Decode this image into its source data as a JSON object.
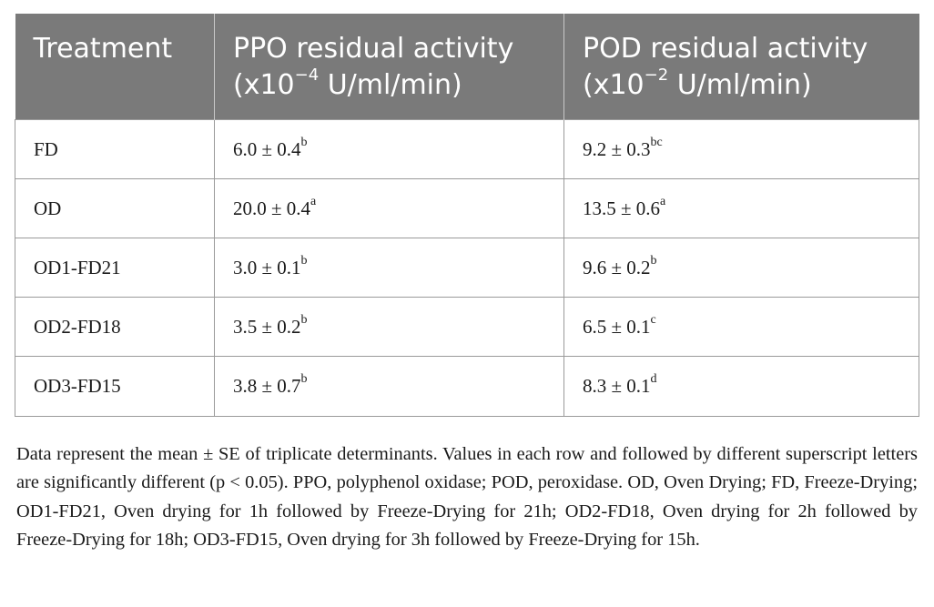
{
  "table": {
    "headers": {
      "treatment": "Treatment",
      "ppo": {
        "line1": "PPO residual activity",
        "line2_prefix": "(x10",
        "line2_exp": "−4",
        "line2_suffix": " U/ml/min)"
      },
      "pod": {
        "line1": "POD residual activity",
        "line2_prefix": "(x10",
        "line2_exp": "−2",
        "line2_suffix": " U/ml/min)"
      }
    },
    "rows": [
      {
        "treatment": "FD",
        "ppo": "6.0 ± 0.4",
        "ppo_sup": "b",
        "pod": "9.2 ± 0.3",
        "pod_sup": "bc"
      },
      {
        "treatment": "OD",
        "ppo": "20.0 ± 0.4",
        "ppo_sup": "a",
        "pod": "13.5 ± 0.6",
        "pod_sup": "a"
      },
      {
        "treatment": "OD1-FD21",
        "ppo": "3.0 ± 0.1",
        "ppo_sup": "b",
        "pod": "9.6 ± 0.2",
        "pod_sup": "b"
      },
      {
        "treatment": "OD2-FD18",
        "ppo": "3.5 ± 0.2",
        "ppo_sup": "b",
        "pod": "6.5 ± 0.1",
        "pod_sup": "c"
      },
      {
        "treatment": "OD3-FD15",
        "ppo": "3.8 ± 0.7",
        "ppo_sup": "b",
        "pod": "8.3 ± 0.1",
        "pod_sup": "d"
      }
    ]
  },
  "footnote": "Data represent the mean ± SE of triplicate determinants. Values in each row and followed by different superscript letters are significantly different (p < 0.05). PPO, polyphenol oxidase; POD, peroxidase. OD, Oven Drying; FD, Freeze-Drying; OD1-FD21, Oven drying for 1h followed by Freeze-Drying for 21h; OD2-FD18, Oven drying for 2h followed by Freeze-Drying for 18h; OD3-FD15, Oven drying for 3h followed by Freeze-Drying for 15h.",
  "colors": {
    "header_background": "#7a7a7a",
    "header_text": "#ffffff",
    "body_text": "#1a1a1a",
    "grid_lines": "#9a9a9a"
  }
}
